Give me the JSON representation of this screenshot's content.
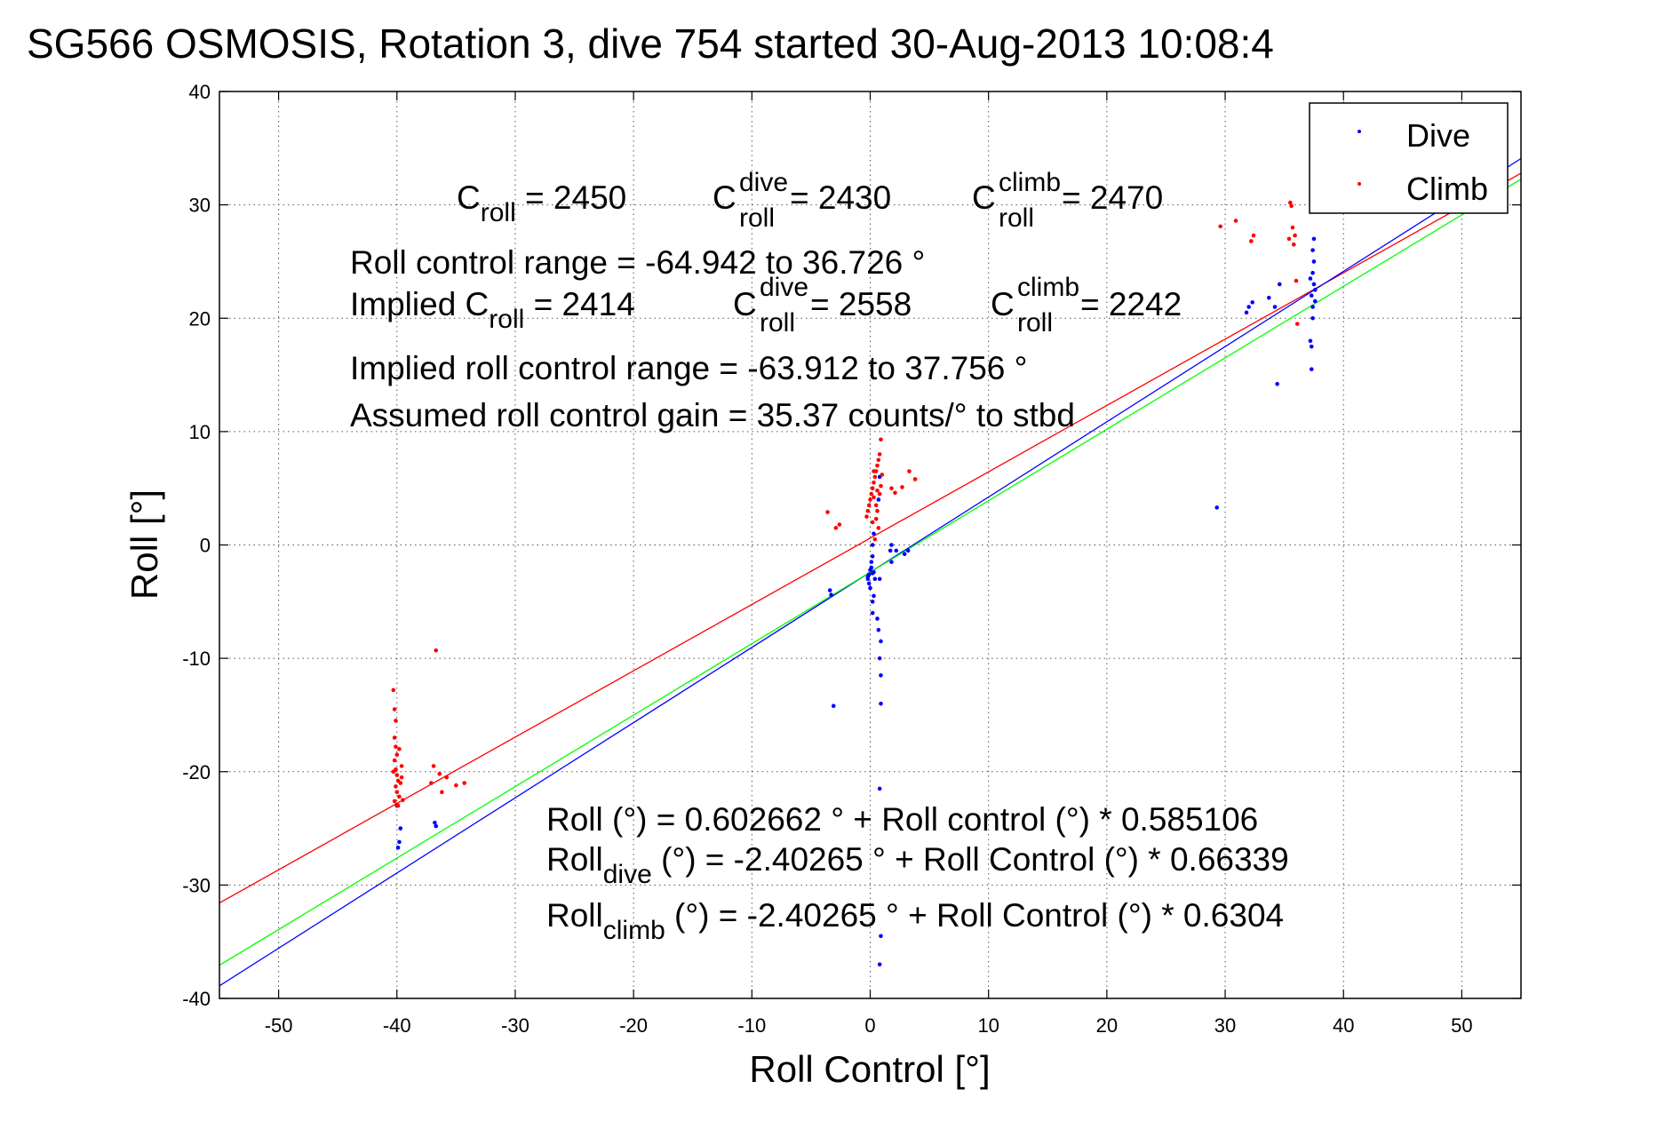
{
  "chart_data": {
    "type": "scatter",
    "title": "SG566 OSMOSIS, Rotation 3, dive 754 started 30-Aug-2013 10:08:4",
    "xlabel": "Roll Control [°]",
    "ylabel": "Roll [°]",
    "xlim": [
      -55,
      55
    ],
    "ylim": [
      -40,
      40
    ],
    "xticks": [
      -50,
      -40,
      -30,
      -20,
      -10,
      0,
      10,
      20,
      30,
      40,
      50
    ],
    "yticks": [
      -40,
      -30,
      -20,
      -10,
      0,
      10,
      20,
      30,
      40
    ],
    "grid": true,
    "legend": {
      "placement": "top-right",
      "entries": [
        {
          "label": "Dive",
          "color": "#0000ff"
        },
        {
          "label": "Climb",
          "color": "#ff0000"
        }
      ]
    },
    "series": [
      {
        "name": "Dive",
        "color": "#0000ff",
        "points": [
          [
            -40.0,
            -23.0
          ],
          [
            -39.8,
            -26.2
          ],
          [
            -39.9,
            -26.7
          ],
          [
            -39.7,
            -25.0
          ],
          [
            -36.8,
            -24.5
          ],
          [
            -36.7,
            -24.8
          ],
          [
            -3.4,
            -4.0
          ],
          [
            -3.3,
            -4.4
          ],
          [
            -3.1,
            -14.2
          ],
          [
            -0.2,
            -3.0
          ],
          [
            -0.2,
            -2.8
          ],
          [
            -0.1,
            -2.6
          ],
          [
            -0.1,
            -3.4
          ],
          [
            0.0,
            -2.2
          ],
          [
            0.0,
            -3.8
          ],
          [
            0.1,
            -2.0
          ],
          [
            0.1,
            -1.5
          ],
          [
            0.2,
            -1.0
          ],
          [
            0.2,
            0.0
          ],
          [
            0.3,
            1.0
          ],
          [
            0.3,
            -2.4
          ],
          [
            0.2,
            -5.0
          ],
          [
            0.2,
            -6.0
          ],
          [
            0.3,
            -4.5
          ],
          [
            0.4,
            -3.0
          ],
          [
            0.2,
            -2.5
          ],
          [
            0.6,
            -6.5
          ],
          [
            0.7,
            -7.5
          ],
          [
            0.9,
            -8.5
          ],
          [
            0.8,
            -10.0
          ],
          [
            0.9,
            -11.5
          ],
          [
            0.9,
            -14.0
          ],
          [
            0.8,
            -3.0
          ],
          [
            0.7,
            4.0
          ],
          [
            0.8,
            6.0
          ],
          [
            0.8,
            -21.5
          ],
          [
            0.9,
            -34.5
          ],
          [
            0.8,
            -37.0
          ],
          [
            1.7,
            -0.5
          ],
          [
            1.8,
            -1.5
          ],
          [
            1.8,
            0.0
          ],
          [
            2.2,
            -0.5
          ],
          [
            2.9,
            -0.8
          ],
          [
            3.2,
            -0.5
          ],
          [
            29.3,
            3.3
          ],
          [
            31.8,
            20.5
          ],
          [
            32.0,
            21.0
          ],
          [
            32.3,
            21.4
          ],
          [
            33.7,
            21.8
          ],
          [
            34.2,
            21.0
          ],
          [
            34.6,
            23.0
          ],
          [
            34.4,
            14.2
          ],
          [
            37.2,
            18.0
          ],
          [
            37.3,
            17.5
          ],
          [
            37.4,
            20.0
          ],
          [
            37.4,
            21.0
          ],
          [
            37.3,
            22.0
          ],
          [
            37.5,
            23.0
          ],
          [
            37.4,
            24.0
          ],
          [
            37.5,
            25.0
          ],
          [
            37.4,
            26.0
          ],
          [
            37.5,
            27.0
          ],
          [
            37.3,
            15.5
          ],
          [
            37.6,
            22.5
          ],
          [
            37.2,
            23.5
          ],
          [
            37.6,
            21.5
          ]
        ]
      },
      {
        "name": "Climb",
        "color": "#ff0000",
        "points": [
          [
            -40.3,
            -12.8
          ],
          [
            -40.2,
            -14.5
          ],
          [
            -40.1,
            -15.5
          ],
          [
            -40.2,
            -17.0
          ],
          [
            -40.1,
            -17.8
          ],
          [
            -40.0,
            -18.5
          ],
          [
            -40.2,
            -19.0
          ],
          [
            -40.1,
            -19.8
          ],
          [
            -40.0,
            -20.3
          ],
          [
            -39.9,
            -20.8
          ],
          [
            -40.1,
            -21.3
          ],
          [
            -40.0,
            -21.8
          ],
          [
            -39.8,
            -22.2
          ],
          [
            -40.2,
            -22.6
          ],
          [
            -39.9,
            -23.0
          ],
          [
            -39.7,
            -21.0
          ],
          [
            -39.6,
            -19.5
          ],
          [
            -40.3,
            -20.0
          ],
          [
            -39.5,
            -22.5
          ],
          [
            -40.0,
            -22.9
          ],
          [
            -39.8,
            -18.0
          ],
          [
            -39.6,
            -20.5
          ],
          [
            -36.7,
            -9.3
          ],
          [
            -36.9,
            -19.5
          ],
          [
            -37.1,
            -21.0
          ],
          [
            -36.2,
            -21.8
          ],
          [
            -35.8,
            -20.5
          ],
          [
            -35.0,
            -21.2
          ],
          [
            -34.3,
            -21.0
          ],
          [
            -36.4,
            -20.2
          ],
          [
            -3.6,
            2.9
          ],
          [
            -2.9,
            1.5
          ],
          [
            -2.6,
            1.8
          ],
          [
            -0.3,
            2.5
          ],
          [
            -0.2,
            3.0
          ],
          [
            -0.1,
            3.5
          ],
          [
            0.0,
            4.0
          ],
          [
            0.1,
            4.5
          ],
          [
            0.2,
            5.0
          ],
          [
            0.3,
            5.5
          ],
          [
            0.4,
            6.0
          ],
          [
            0.5,
            6.5
          ],
          [
            0.6,
            7.0
          ],
          [
            0.7,
            7.5
          ],
          [
            0.8,
            8.0
          ],
          [
            0.5,
            3.5
          ],
          [
            0.3,
            4.2
          ],
          [
            0.6,
            4.8
          ],
          [
            0.9,
            5.2
          ],
          [
            0.2,
            2.0
          ],
          [
            0.5,
            2.3
          ],
          [
            0.7,
            1.5
          ],
          [
            0.4,
            0.5
          ],
          [
            0.9,
            9.3
          ],
          [
            0.3,
            6.5
          ],
          [
            0.6,
            3.0
          ],
          [
            0.8,
            4.5
          ],
          [
            1.0,
            6.2
          ],
          [
            1.8,
            5.0
          ],
          [
            2.1,
            4.6
          ],
          [
            2.7,
            5.1
          ],
          [
            3.3,
            6.5
          ],
          [
            3.8,
            5.8
          ],
          [
            29.6,
            28.1
          ],
          [
            30.9,
            28.6
          ],
          [
            32.2,
            26.8
          ],
          [
            32.4,
            27.3
          ],
          [
            35.5,
            30.2
          ],
          [
            35.6,
            29.9
          ],
          [
            35.7,
            28.0
          ],
          [
            35.9,
            27.3
          ],
          [
            35.8,
            26.5
          ],
          [
            36.0,
            23.3
          ],
          [
            36.1,
            19.5
          ],
          [
            35.4,
            27.0
          ]
        ]
      }
    ],
    "fit_lines": [
      {
        "color": "#ff0000",
        "intercept": 0.602662,
        "slope": 0.585106
      },
      {
        "color": "#0000ff",
        "intercept": -2.40265,
        "slope": 0.66339
      },
      {
        "color": "#00ff00",
        "intercept": -2.40265,
        "slope": 0.6304
      }
    ],
    "annotations": {
      "croll_line": {
        "c": "C",
        "sub_roll": "roll",
        "val": " = 2450",
        "sup_dive": "dive",
        "val_dive": " = 2430",
        "sup_climb": "climb",
        "val_climb": " = 2470"
      },
      "range_line": "Roll control range = -64.942 to 36.726 °",
      "implied_line": {
        "prefix": "Implied C",
        "sub_roll": "roll",
        "val": " = 2414",
        "c": "C",
        "sup_dive": "dive",
        "val_dive": " = 2558",
        "sup_climb": "climb",
        "val_climb": " = 2242"
      },
      "implied_range": "Implied roll control range = -63.912 to 37.756 °",
      "gain": "Assumed roll control gain = 35.37 counts/° to stbd",
      "eq1": "Roll (°) = 0.602662 ° + Roll control (°) * 0.585106",
      "eq2": {
        "a": "Roll",
        "sub": "dive",
        "b": " (°) = -2.40265 ° + Roll Control (°) * 0.66339"
      },
      "eq3": {
        "a": "Roll",
        "sub": "climb",
        "b": " (°) = -2.40265 ° + Roll Control (°) * 0.6304"
      }
    }
  }
}
